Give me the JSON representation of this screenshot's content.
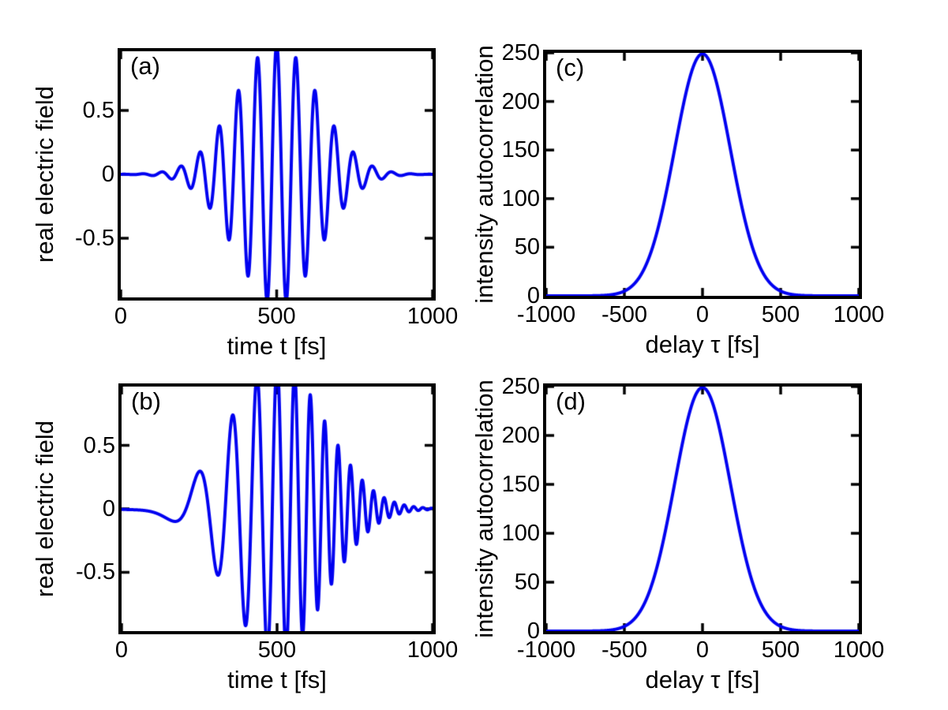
{
  "figure": {
    "background": "#ffffff",
    "text_color": "#000000",
    "axis_color": "#000000",
    "grid": "2x2",
    "gridlines": false,
    "legend": "none"
  },
  "chart_data": [
    {
      "type": "line",
      "subtype": "pulse",
      "panel_label": "(a)",
      "description": "unchirped Gaussian laser pulse, real electric field vs time",
      "xlabel": "time t [fs]",
      "ylabel": "real electric field",
      "xlim": [
        0,
        1000
      ],
      "ylim": [
        -0.963,
        0.963
      ],
      "xticks": [
        {
          "value": 0,
          "label": "0"
        },
        {
          "value": 500,
          "label": "500"
        },
        {
          "value": 1000,
          "label": "1000"
        }
      ],
      "yticks": [
        {
          "value": 0.5,
          "label": "0.5"
        },
        {
          "value": 0,
          "label": "0"
        },
        {
          "value": -0.5,
          "label": "-0.5"
        }
      ],
      "line_color": "#0000F0",
      "line_width": 4,
      "params": {
        "amplitude": 1.02,
        "center_fs": 500,
        "envelope_sigma_fs": 185,
        "carrier_period_fs": 61.5,
        "chirp_rate_per_fs2": 0
      },
      "peak_amplitudes": [
        [
          256,
          0.19
        ],
        [
          316,
          0.4
        ],
        [
          380,
          0.65
        ],
        [
          443,
          0.86
        ],
        [
          506,
          1.0
        ],
        [
          567,
          0.82
        ],
        [
          628,
          0.63
        ],
        [
          689,
          0.39
        ],
        [
          749,
          0.18
        ]
      ]
    },
    {
      "type": "line",
      "subtype": "pulse",
      "panel_label": "(b)",
      "description": "linearly up-chirped Gaussian laser pulse, slow oscillations early, fast oscillations late",
      "xlabel": "time t [fs]",
      "ylabel": "real electric field",
      "xlim": [
        0,
        1000
      ],
      "ylim": [
        -0.963,
        0.963
      ],
      "xticks": [
        {
          "value": 0,
          "label": "0"
        },
        {
          "value": 500,
          "label": "500"
        },
        {
          "value": 1000,
          "label": "1000"
        }
      ],
      "yticks": [
        {
          "value": 0.5,
          "label": "0.5"
        },
        {
          "value": 0,
          "label": "0"
        },
        {
          "value": -0.5,
          "label": "-0.5"
        }
      ],
      "line_color": "#0000F0",
      "line_width": 4,
      "params": {
        "amplitude": 1.15,
        "center_fs": 500,
        "envelope_sigma_fs": 215,
        "carrier_period_fs": 60,
        "chirp_rate_per_fs2": 3.8e-05
      },
      "peak_amplitudes": [
        [
          263,
          0.2
        ],
        [
          362,
          0.87
        ],
        [
          441,
          0.96
        ],
        [
          505,
          0.96
        ],
        [
          564,
          0.96
        ],
        [
          666,
          0.73
        ],
        [
          717,
          0.49
        ],
        [
          760,
          0.3
        ],
        [
          798,
          0.18
        ],
        [
          831,
          0.1
        ]
      ]
    },
    {
      "type": "line",
      "subtype": "autocorrelation",
      "panel_label": "(c)",
      "description": "intensity autocorrelation of pulse (a), Gaussian peak 250 at zero delay, FWHM ~420 fs",
      "xlabel": "delay τ [fs]",
      "ylabel": "intensity autocorrelation",
      "xlim": [
        -1000,
        1000
      ],
      "ylim": [
        0,
        250
      ],
      "xticks": [
        {
          "value": -1000,
          "label": "-1000"
        },
        {
          "value": -500,
          "label": "-500"
        },
        {
          "value": 0,
          "label": "0"
        },
        {
          "value": 500,
          "label": "500"
        },
        {
          "value": 1000,
          "label": "1000"
        }
      ],
      "yticks": [
        {
          "value": 0,
          "label": "0"
        },
        {
          "value": 50,
          "label": "50"
        },
        {
          "value": 100,
          "label": "100"
        },
        {
          "value": 150,
          "label": "150"
        },
        {
          "value": 200,
          "label": "200"
        },
        {
          "value": 250,
          "label": "250"
        }
      ],
      "line_color": "#0000F0",
      "line_width": 4,
      "params": {
        "peak": 249,
        "center_fs": 0,
        "gauss_width_fs": 252
      },
      "points": [
        [
          -1000,
          0
        ],
        [
          -600,
          1
        ],
        [
          -500,
          5
        ],
        [
          -400,
          20
        ],
        [
          -300,
          60
        ],
        [
          -210,
          125
        ],
        [
          -100,
          213
        ],
        [
          0,
          249
        ],
        [
          100,
          213
        ],
        [
          210,
          125
        ],
        [
          300,
          60
        ],
        [
          400,
          20
        ],
        [
          500,
          5
        ],
        [
          600,
          1
        ],
        [
          1000,
          0
        ]
      ]
    },
    {
      "type": "line",
      "subtype": "autocorrelation",
      "panel_label": "(d)",
      "description": "intensity autocorrelation of pulse (b), identical to (c)",
      "xlabel": "delay τ [fs]",
      "ylabel": "intensity autocorrelation",
      "xlim": [
        -1000,
        1000
      ],
      "ylim": [
        0,
        250
      ],
      "xticks": [
        {
          "value": -1000,
          "label": "-1000"
        },
        {
          "value": -500,
          "label": "-500"
        },
        {
          "value": 0,
          "label": "0"
        },
        {
          "value": 500,
          "label": "500"
        },
        {
          "value": 1000,
          "label": "1000"
        }
      ],
      "yticks": [
        {
          "value": 0,
          "label": "0"
        },
        {
          "value": 50,
          "label": "50"
        },
        {
          "value": 100,
          "label": "100"
        },
        {
          "value": 150,
          "label": "150"
        },
        {
          "value": 200,
          "label": "200"
        },
        {
          "value": 250,
          "label": "250"
        }
      ],
      "line_color": "#0000F0",
      "line_width": 4,
      "params": {
        "peak": 249,
        "center_fs": 0,
        "gauss_width_fs": 252
      },
      "points": [
        [
          -1000,
          0
        ],
        [
          -600,
          1
        ],
        [
          -500,
          5
        ],
        [
          -400,
          20
        ],
        [
          -300,
          60
        ],
        [
          -210,
          125
        ],
        [
          -100,
          213
        ],
        [
          0,
          249
        ],
        [
          100,
          213
        ],
        [
          210,
          125
        ],
        [
          300,
          60
        ],
        [
          400,
          20
        ],
        [
          500,
          5
        ],
        [
          600,
          1
        ],
        [
          1000,
          0
        ]
      ]
    }
  ]
}
